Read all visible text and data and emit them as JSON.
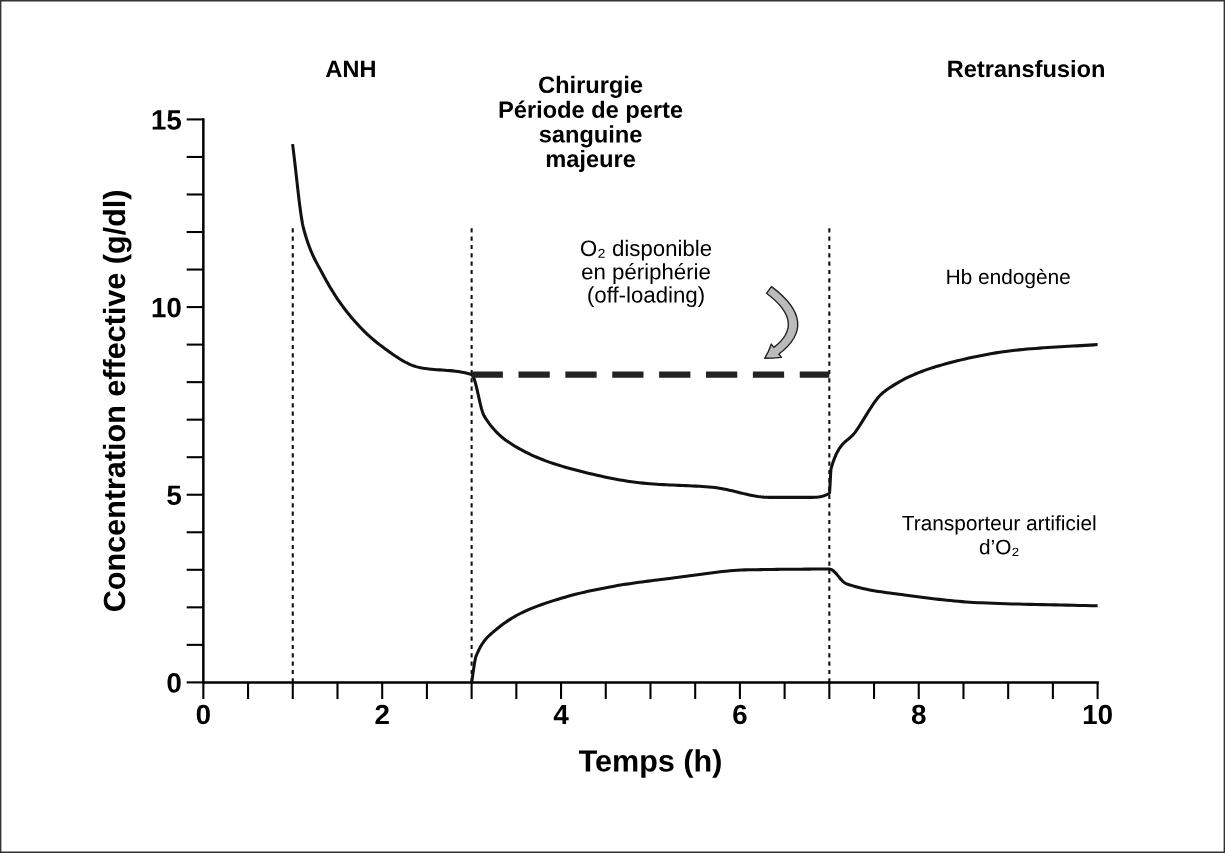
{
  "chart_data": {
    "type": "line",
    "xlabel": "Temps (h)",
    "ylabel": "Concentration effective (g/dl)",
    "xlim": [
      0,
      10
    ],
    "ylim": [
      0,
      15
    ],
    "xticks": [
      0,
      2,
      4,
      6,
      8,
      10
    ],
    "yticks": [
      0,
      5,
      10,
      15
    ],
    "grid": false,
    "legend": false,
    "marker": "none",
    "series": [
      {
        "name": "Hb endogène",
        "color": "#111111",
        "line_style": "solid",
        "x": [
          1,
          1.12,
          1.33,
          1.63,
          1.97,
          2.4,
          3,
          3.14,
          3.48,
          4.1,
          4.96,
          5.69,
          6.33,
          6.8,
          7.0,
          7.02,
          7.3,
          7.61,
          8.26,
          9.12,
          10
        ],
        "values": [
          14.3,
          12.1,
          10.9,
          9.8,
          9.0,
          8.4,
          8.2,
          7.1,
          6.3,
          5.7,
          5.3,
          5.2,
          4.93,
          4.93,
          5.04,
          5.7,
          6.7,
          7.74,
          8.46,
          8.86,
          9.0
        ]
      },
      {
        "name": "Transporteur artificiel\nd’O₂",
        "color": "#111111",
        "line_style": "solid",
        "x": [
          3,
          3.05,
          3.27,
          3.7,
          4.56,
          5.25,
          6.1,
          7.0,
          7.19,
          7.84,
          8.7,
          10
        ],
        "values": [
          0,
          0.7,
          1.4,
          2.0,
          2.55,
          2.78,
          3.0,
          3.02,
          2.63,
          2.33,
          2.12,
          2.04
        ]
      },
      {
        "color": "#222222",
        "line_style": "dashed",
        "x": [
          3,
          7
        ],
        "values": [
          8.2,
          8.2
        ]
      }
    ],
    "ref_lines": [
      {
        "axis": "x",
        "value": 1,
        "line_style": "dotted"
      },
      {
        "axis": "x",
        "value": 3,
        "line_style": "dotted"
      },
      {
        "axis": "x",
        "value": 7,
        "line_style": "dotted"
      }
    ],
    "annotations": [
      "ANH",
      "Chirurgie\nPériode de perte\nsanguine\nmajeure",
      "Retransfusion",
      "O₂ disponible\nen périphérie\n(off-loading)"
    ]
  }
}
